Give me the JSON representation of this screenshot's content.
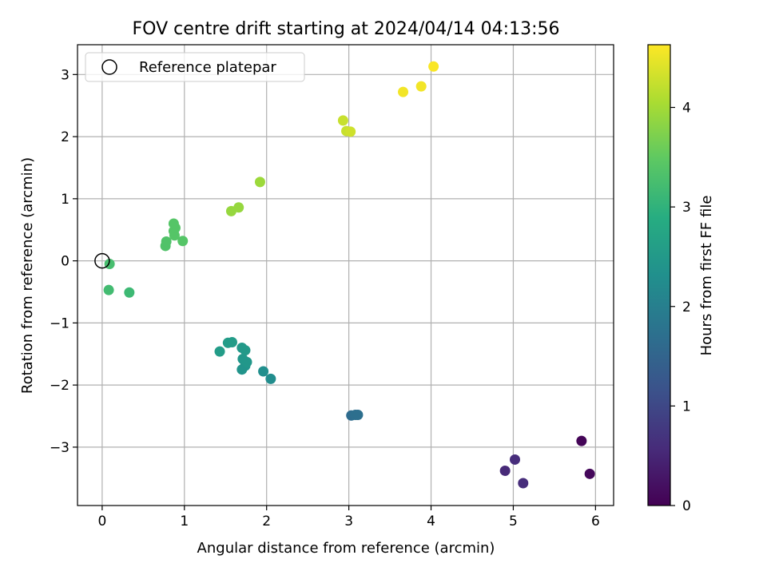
{
  "chart_data": {
    "type": "scatter",
    "title": "FOV centre drift starting at 2024/04/14 04:13:56",
    "xlabel": "Angular distance from reference (arcmin)",
    "ylabel": "Rotation from reference (arcmin)",
    "xlim": [
      -0.3,
      6.22
    ],
    "ylim": [
      -3.94,
      3.48
    ],
    "xticks": [
      0,
      1,
      2,
      3,
      4,
      5,
      6
    ],
    "xtick_labels": [
      "0",
      "1",
      "2",
      "3",
      "4",
      "5",
      "6"
    ],
    "yticks": [
      -3,
      -2,
      -1,
      0,
      1,
      2,
      3
    ],
    "ytick_labels": [
      "−3",
      "−2",
      "−1",
      "0",
      "1",
      "2",
      "3"
    ],
    "grid": true,
    "legend": {
      "location": "upper-left",
      "entries": [
        "Reference platepar"
      ]
    },
    "reference_point": {
      "x": 0,
      "y": 0,
      "label": "Reference platepar"
    },
    "colorbar": {
      "label": "Hours from first FF file",
      "range": [
        0,
        4.63
      ],
      "ticks": [
        0,
        1,
        2,
        3,
        4
      ],
      "tick_labels": [
        "0",
        "1",
        "2",
        "3",
        "4"
      ],
      "colormap": "viridis"
    },
    "points": [
      {
        "x": 5.83,
        "y": -2.9,
        "c": 0.05
      },
      {
        "x": 5.93,
        "y": -3.43,
        "c": 0.1
      },
      {
        "x": 4.9,
        "y": -3.38,
        "c": 0.55
      },
      {
        "x": 5.02,
        "y": -3.2,
        "c": 0.6
      },
      {
        "x": 5.12,
        "y": -3.58,
        "c": 0.6
      },
      {
        "x": 3.03,
        "y": -2.49,
        "c": 1.65
      },
      {
        "x": 3.08,
        "y": -2.48,
        "c": 1.7
      },
      {
        "x": 3.11,
        "y": -2.48,
        "c": 1.7
      },
      {
        "x": 2.05,
        "y": -1.9,
        "c": 2.25
      },
      {
        "x": 1.96,
        "y": -1.78,
        "c": 2.3
      },
      {
        "x": 1.7,
        "y": -1.75,
        "c": 2.4
      },
      {
        "x": 1.74,
        "y": -1.69,
        "c": 2.4
      },
      {
        "x": 1.76,
        "y": -1.63,
        "c": 2.45
      },
      {
        "x": 1.71,
        "y": -1.58,
        "c": 2.45
      },
      {
        "x": 1.74,
        "y": -1.44,
        "c": 2.5
      },
      {
        "x": 1.7,
        "y": -1.4,
        "c": 2.5
      },
      {
        "x": 1.43,
        "y": -1.46,
        "c": 2.55
      },
      {
        "x": 1.53,
        "y": -1.32,
        "c": 2.55
      },
      {
        "x": 1.58,
        "y": -1.31,
        "c": 2.55
      },
      {
        "x": 0.33,
        "y": -0.51,
        "c": 3.15
      },
      {
        "x": 0.08,
        "y": -0.47,
        "c": 3.2
      },
      {
        "x": 0.09,
        "y": -0.05,
        "c": 3.25
      },
      {
        "x": 0.77,
        "y": 0.24,
        "c": 3.35
      },
      {
        "x": 0.78,
        "y": 0.31,
        "c": 3.35
      },
      {
        "x": 0.98,
        "y": 0.32,
        "c": 3.4
      },
      {
        "x": 0.88,
        "y": 0.41,
        "c": 3.4
      },
      {
        "x": 0.87,
        "y": 0.48,
        "c": 3.4
      },
      {
        "x": 0.89,
        "y": 0.53,
        "c": 3.4
      },
      {
        "x": 0.87,
        "y": 0.6,
        "c": 3.4
      },
      {
        "x": 1.57,
        "y": 0.8,
        "c": 3.9
      },
      {
        "x": 1.66,
        "y": 0.86,
        "c": 3.9
      },
      {
        "x": 1.92,
        "y": 1.27,
        "c": 3.95
      },
      {
        "x": 2.93,
        "y": 2.26,
        "c": 4.25
      },
      {
        "x": 2.97,
        "y": 2.09,
        "c": 4.25
      },
      {
        "x": 3.02,
        "y": 2.08,
        "c": 4.3
      },
      {
        "x": 3.66,
        "y": 2.72,
        "c": 4.55
      },
      {
        "x": 3.88,
        "y": 2.81,
        "c": 4.55
      },
      {
        "x": 4.03,
        "y": 3.13,
        "c": 4.6
      }
    ]
  }
}
